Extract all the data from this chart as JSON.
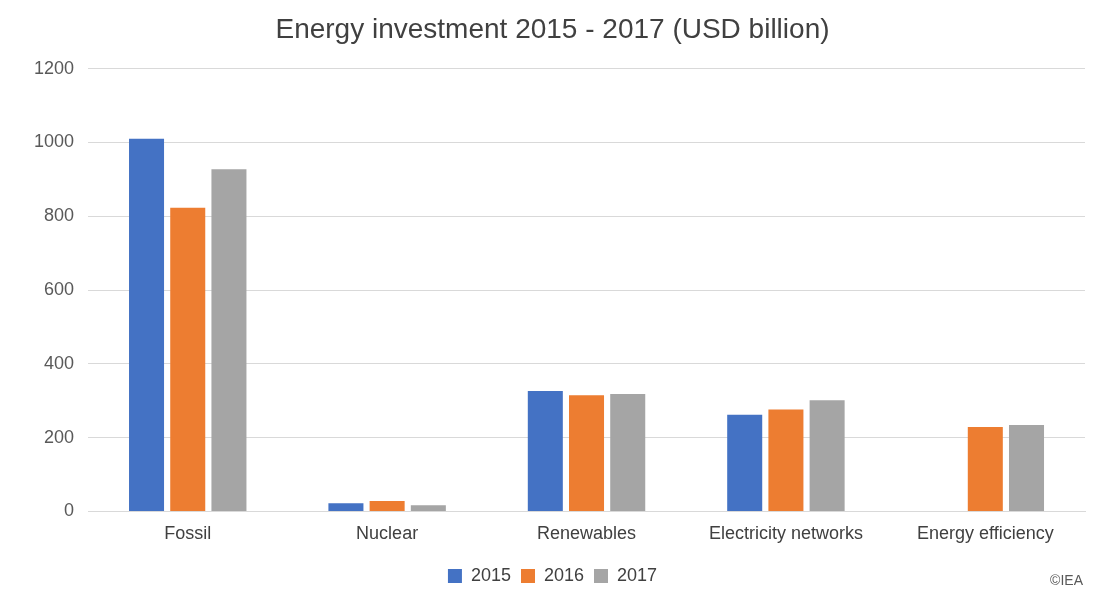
{
  "chart_data": {
    "type": "bar",
    "title": "Energy investment 2015 - 2017 (USD billion)",
    "categories": [
      "Fossil",
      "Nuclear",
      "Renewables",
      "Electricity networks",
      "Energy efficiency"
    ],
    "series": [
      {
        "name": "2015",
        "color": "#4472c4",
        "values": [
          1010,
          22,
          326,
          262,
          null
        ]
      },
      {
        "name": "2016",
        "color": "#ed7d31",
        "values": [
          823,
          28,
          315,
          276,
          229
        ]
      },
      {
        "name": "2017",
        "color": "#a5a5a5",
        "values": [
          927,
          17,
          318,
          301,
          234
        ]
      }
    ],
    "ylim": [
      0,
      1200
    ],
    "yticks": [
      0,
      200,
      400,
      600,
      800,
      1000,
      1200
    ],
    "grid": "y",
    "legend": "bottom",
    "annotations": [
      "©IEA"
    ]
  }
}
